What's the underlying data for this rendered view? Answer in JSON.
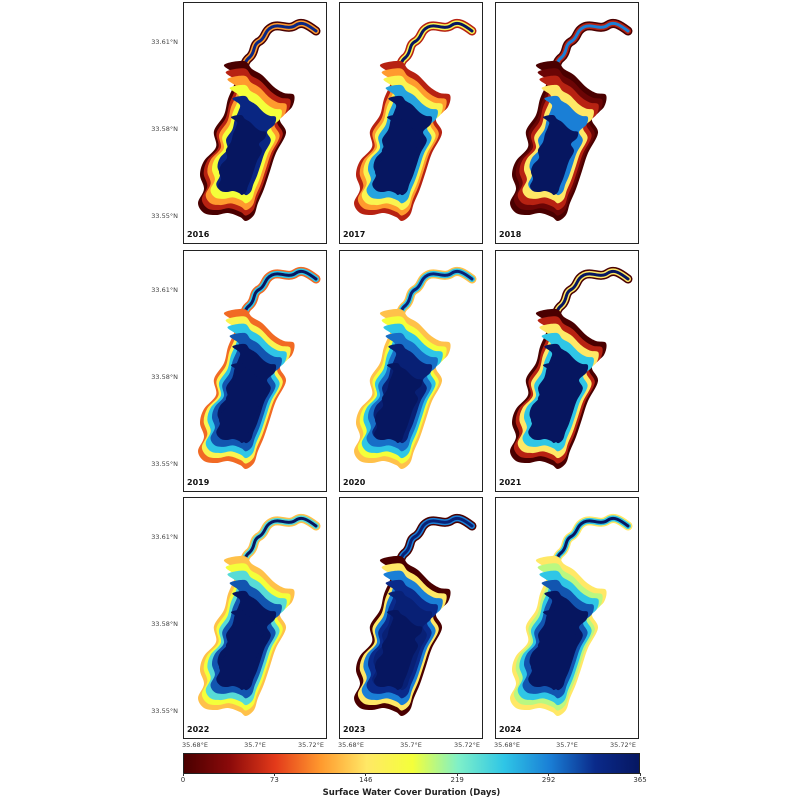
{
  "panels": [
    {
      "year": "2016",
      "rings": [
        0,
        0.15,
        0.3,
        0.5,
        0.92
      ]
    },
    {
      "year": "2017",
      "rings": [
        0.15,
        0.3,
        0.45,
        0.75,
        1.0
      ]
    },
    {
      "year": "2018",
      "rings": [
        0,
        0.05,
        0.15,
        0.4,
        0.8
      ]
    },
    {
      "year": "2019",
      "rings": [
        0.25,
        0.45,
        0.7,
        0.85,
        1.0
      ]
    },
    {
      "year": "2020",
      "rings": [
        0.35,
        0.5,
        0.7,
        0.82,
        0.95
      ]
    },
    {
      "year": "2021",
      "rings": [
        0,
        0.15,
        0.4,
        0.7,
        1.0
      ]
    },
    {
      "year": "2022",
      "rings": [
        0.35,
        0.5,
        0.65,
        0.85,
        1.0
      ]
    },
    {
      "year": "2023",
      "rings": [
        0,
        0.4,
        0.8,
        0.9,
        0.95
      ]
    },
    {
      "year": "2024",
      "rings": [
        0.4,
        0.55,
        0.7,
        0.85,
        1.0
      ]
    }
  ],
  "y_axis_labels": [
    "33.61°N",
    "33.58°N",
    "33.55°N"
  ],
  "x_axis_labels": [
    "35.68°E",
    "35.7°E",
    "35.72°E"
  ],
  "colorbar": {
    "title": "Surface Water Cover Duration (Days)",
    "ticks": [
      "0",
      "73",
      "146",
      "219",
      "292",
      "365"
    ],
    "min": 0,
    "max": 365,
    "colormap": [
      "#4a0000",
      "#8b0a0a",
      "#e33a1a",
      "#ff9a2e",
      "#ffe866",
      "#f4ff3a",
      "#7ff0c8",
      "#2fc6e6",
      "#1a7fd6",
      "#0a2a8a",
      "#061660"
    ]
  }
}
